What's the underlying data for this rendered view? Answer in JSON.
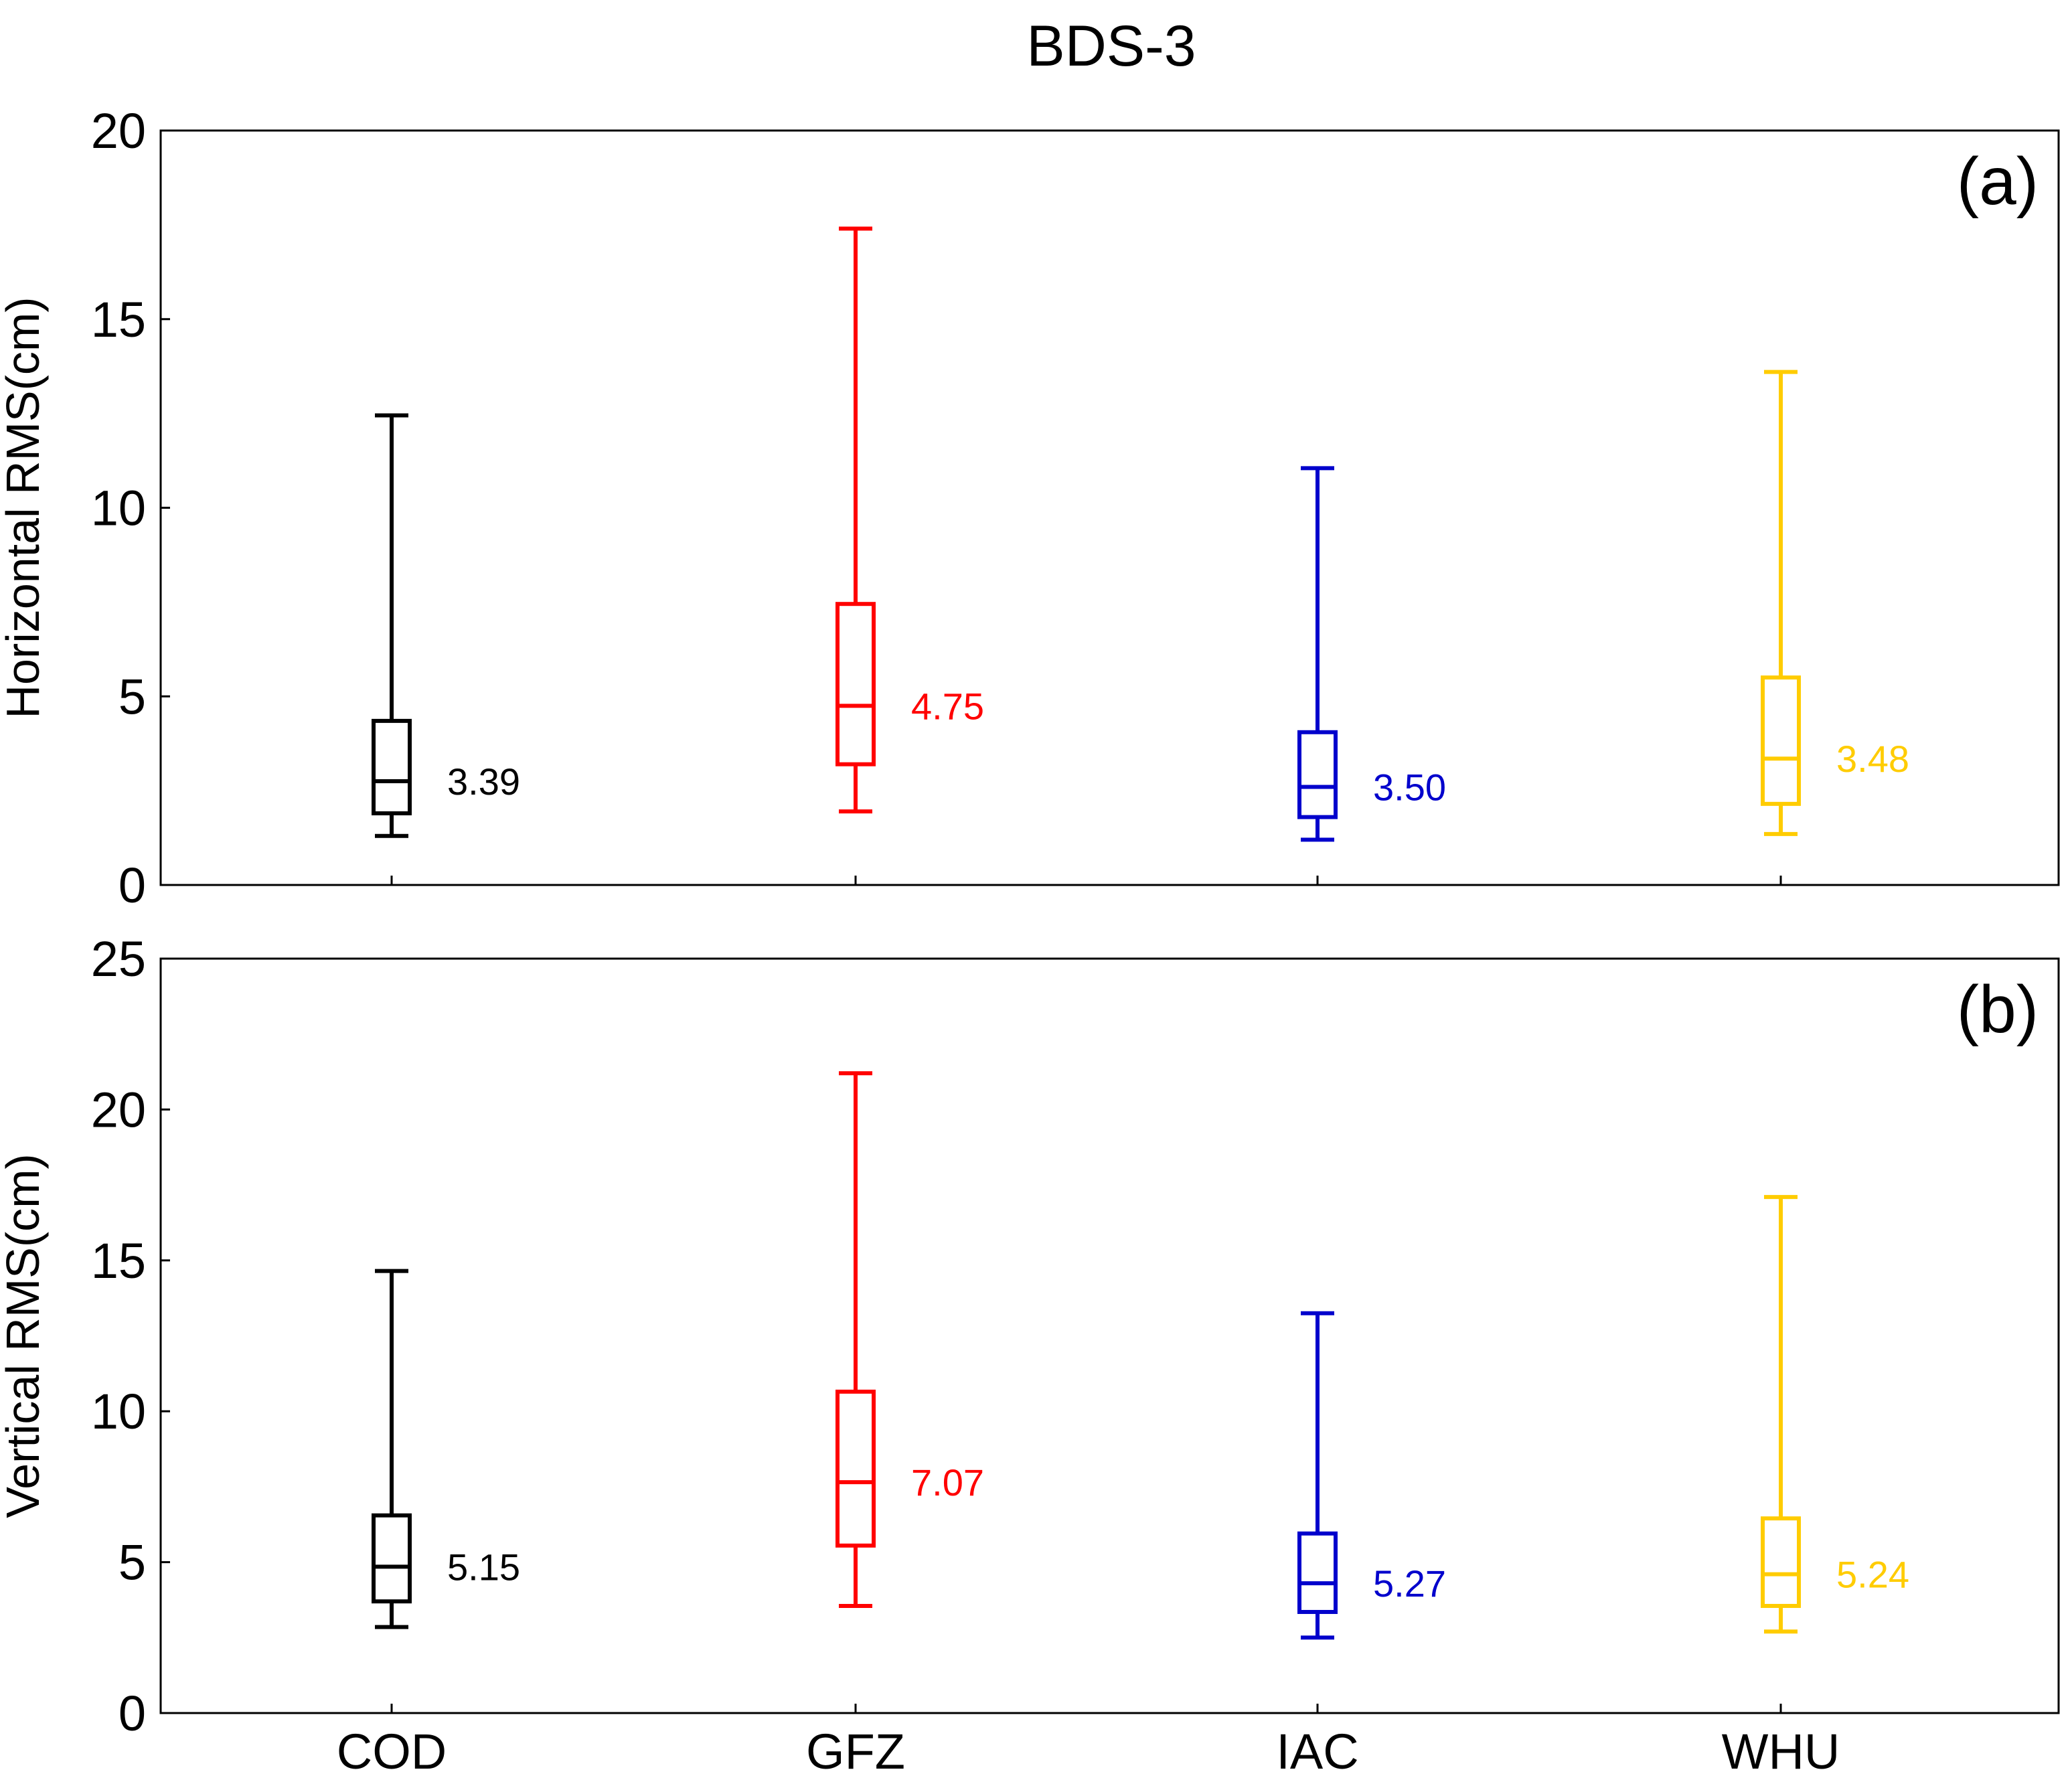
{
  "chart_data": {
    "type": "boxplot",
    "title": "BDS-3",
    "categories": [
      "COD",
      "GFZ",
      "IAC",
      "WHU"
    ],
    "colors": [
      "#000000",
      "#ff0000",
      "#0000cc",
      "#ffcc00"
    ],
    "panels": [
      {
        "label": "(a)",
        "ylabel": "Horizontal RMS(cm)",
        "ylim": [
          0,
          20
        ],
        "yticks": [
          0,
          5,
          10,
          15,
          20
        ],
        "boxes": [
          {
            "whisker_low": 1.3,
            "q1": 1.9,
            "median": 2.75,
            "q3": 4.35,
            "whisker_high": 12.45,
            "mean_label": "3.39"
          },
          {
            "whisker_low": 1.95,
            "q1": 3.2,
            "median": 4.75,
            "q3": 7.45,
            "whisker_high": 17.4,
            "mean_label": "4.75"
          },
          {
            "whisker_low": 1.2,
            "q1": 1.8,
            "median": 2.6,
            "q3": 4.05,
            "whisker_high": 11.05,
            "mean_label": "3.50"
          },
          {
            "whisker_low": 1.35,
            "q1": 2.15,
            "median": 3.35,
            "q3": 5.5,
            "whisker_high": 13.6,
            "mean_label": "3.48"
          }
        ]
      },
      {
        "label": "(b)",
        "ylabel": "Vertical RMS(cm)",
        "ylim": [
          0,
          25
        ],
        "yticks": [
          0,
          5,
          10,
          15,
          20,
          25
        ],
        "boxes": [
          {
            "whisker_low": 2.85,
            "q1": 3.7,
            "median": 4.85,
            "q3": 6.55,
            "whisker_high": 14.65,
            "mean_label": "5.15"
          },
          {
            "whisker_low": 3.55,
            "q1": 5.55,
            "median": 7.65,
            "q3": 10.65,
            "whisker_high": 21.2,
            "mean_label": "7.07"
          },
          {
            "whisker_low": 2.5,
            "q1": 3.35,
            "median": 4.3,
            "q3": 5.95,
            "whisker_high": 13.25,
            "mean_label": "5.27"
          },
          {
            "whisker_low": 2.7,
            "q1": 3.55,
            "median": 4.6,
            "q3": 6.45,
            "whisker_high": 17.1,
            "mean_label": "5.24"
          }
        ]
      }
    ]
  }
}
